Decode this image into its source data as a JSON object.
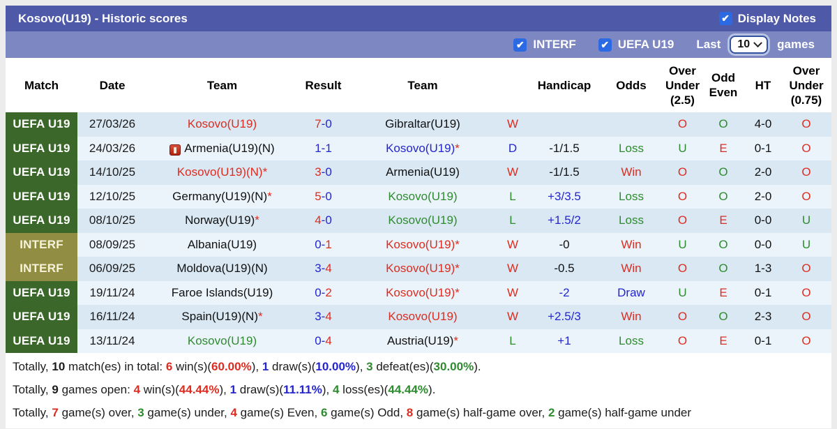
{
  "header": {
    "title": "Kosovo(U19) - Historic scores",
    "display_notes_label": "Display Notes",
    "display_notes_checked": true
  },
  "filter_bar": {
    "interf_label": "INTERF",
    "interf_checked": true,
    "uefa_label": "UEFA U19",
    "uefa_checked": true,
    "last_label": "Last",
    "last_games_value": "10",
    "games_label": "games"
  },
  "colors": {
    "accent_bar_dark": "#4e59a7",
    "accent_bar_light": "#7d87c1",
    "badge_uefa_green": "#3b682a",
    "badge_interf_olive": "#918d42",
    "win_red": "#dd2c20",
    "draw_blue": "#2425cf",
    "loss_green": "#2e8b2e"
  },
  "table": {
    "columns": [
      [
        "Match"
      ],
      [
        "Date"
      ],
      [
        "Team"
      ],
      [
        "Result"
      ],
      [
        "Team"
      ],
      [
        ""
      ],
      [
        "Handicap"
      ],
      [
        "Odds"
      ],
      [
        "Over",
        "Under",
        "(2.5)"
      ],
      [
        "Odd",
        "Even"
      ],
      [
        "HT"
      ],
      [
        "Over",
        "Under",
        "(0.75)"
      ]
    ]
  },
  "rows": [
    {
      "competition": "UEFA U19",
      "competition_type": "uefa",
      "date": "27/03/26",
      "team1": {
        "name": "Kosovo(U19)",
        "color": "red",
        "star": false,
        "icon": false
      },
      "result": {
        "s1": "7",
        "s2": "0",
        "c1": "red",
        "c2": "blue"
      },
      "team2": {
        "name": "Gibraltar(U19)",
        "color": "black",
        "star": false
      },
      "wdl": {
        "v": "W",
        "color": "red"
      },
      "handicap": {
        "v": "",
        "color": "black"
      },
      "odds": {
        "v": "",
        "color": "red"
      },
      "ou25": {
        "v": "O",
        "color": "red"
      },
      "oddeven": {
        "v": "O",
        "color": "green"
      },
      "ht": "4-0",
      "ou075": {
        "v": "O",
        "color": "red"
      }
    },
    {
      "competition": "UEFA U19",
      "competition_type": "uefa",
      "date": "24/03/26",
      "team1": {
        "name": "Armenia(U19)(N)",
        "color": "black",
        "star": false,
        "icon": true
      },
      "result": {
        "s1": "1",
        "s2": "1",
        "c1": "blue",
        "c2": "blue"
      },
      "team2": {
        "name": "Kosovo(U19)",
        "color": "blue",
        "star": true
      },
      "wdl": {
        "v": "D",
        "color": "blue"
      },
      "handicap": {
        "v": "-1/1.5",
        "color": "black"
      },
      "odds": {
        "v": "Loss",
        "color": "green"
      },
      "ou25": {
        "v": "U",
        "color": "green"
      },
      "oddeven": {
        "v": "E",
        "color": "red"
      },
      "ht": "0-1",
      "ou075": {
        "v": "O",
        "color": "red"
      }
    },
    {
      "competition": "UEFA U19",
      "competition_type": "uefa",
      "date": "14/10/25",
      "team1": {
        "name": "Kosovo(U19)(N)",
        "color": "red",
        "star": true,
        "icon": false
      },
      "result": {
        "s1": "3",
        "s2": "0",
        "c1": "red",
        "c2": "blue"
      },
      "team2": {
        "name": "Armenia(U19)",
        "color": "black",
        "star": false
      },
      "wdl": {
        "v": "W",
        "color": "red"
      },
      "handicap": {
        "v": "-1/1.5",
        "color": "black"
      },
      "odds": {
        "v": "Win",
        "color": "red"
      },
      "ou25": {
        "v": "O",
        "color": "red"
      },
      "oddeven": {
        "v": "O",
        "color": "green"
      },
      "ht": "2-0",
      "ou075": {
        "v": "O",
        "color": "red"
      }
    },
    {
      "competition": "UEFA U19",
      "competition_type": "uefa",
      "date": "12/10/25",
      "team1": {
        "name": "Germany(U19)(N)",
        "color": "black",
        "star": true,
        "icon": false
      },
      "result": {
        "s1": "5",
        "s2": "0",
        "c1": "red",
        "c2": "blue"
      },
      "team2": {
        "name": "Kosovo(U19)",
        "color": "green",
        "star": false
      },
      "wdl": {
        "v": "L",
        "color": "green"
      },
      "handicap": {
        "v": "+3/3.5",
        "color": "blue"
      },
      "odds": {
        "v": "Loss",
        "color": "green"
      },
      "ou25": {
        "v": "O",
        "color": "red"
      },
      "oddeven": {
        "v": "O",
        "color": "green"
      },
      "ht": "2-0",
      "ou075": {
        "v": "O",
        "color": "red"
      }
    },
    {
      "competition": "UEFA U19",
      "competition_type": "uefa",
      "date": "08/10/25",
      "team1": {
        "name": "Norway(U19)",
        "color": "black",
        "star": true,
        "icon": false
      },
      "result": {
        "s1": "4",
        "s2": "0",
        "c1": "red",
        "c2": "blue"
      },
      "team2": {
        "name": "Kosovo(U19)",
        "color": "green",
        "star": false
      },
      "wdl": {
        "v": "L",
        "color": "green"
      },
      "handicap": {
        "v": "+1.5/2",
        "color": "blue"
      },
      "odds": {
        "v": "Loss",
        "color": "green"
      },
      "ou25": {
        "v": "O",
        "color": "red"
      },
      "oddeven": {
        "v": "E",
        "color": "red"
      },
      "ht": "0-0",
      "ou075": {
        "v": "U",
        "color": "green"
      }
    },
    {
      "competition": "INTERF",
      "competition_type": "interf",
      "date": "08/09/25",
      "team1": {
        "name": "Albania(U19)",
        "color": "black",
        "star": false,
        "icon": false
      },
      "result": {
        "s1": "0",
        "s2": "1",
        "c1": "blue",
        "c2": "red"
      },
      "team2": {
        "name": "Kosovo(U19)",
        "color": "red",
        "star": true
      },
      "wdl": {
        "v": "W",
        "color": "red"
      },
      "handicap": {
        "v": "-0",
        "color": "black"
      },
      "odds": {
        "v": "Win",
        "color": "red"
      },
      "ou25": {
        "v": "U",
        "color": "green"
      },
      "oddeven": {
        "v": "O",
        "color": "green"
      },
      "ht": "0-0",
      "ou075": {
        "v": "U",
        "color": "green"
      }
    },
    {
      "competition": "INTERF",
      "competition_type": "interf",
      "date": "06/09/25",
      "team1": {
        "name": "Moldova(U19)(N)",
        "color": "black",
        "star": false,
        "icon": false
      },
      "result": {
        "s1": "3",
        "s2": "4",
        "c1": "blue",
        "c2": "red"
      },
      "team2": {
        "name": "Kosovo(U19)",
        "color": "red",
        "star": true
      },
      "wdl": {
        "v": "W",
        "color": "red"
      },
      "handicap": {
        "v": "-0.5",
        "color": "black"
      },
      "odds": {
        "v": "Win",
        "color": "red"
      },
      "ou25": {
        "v": "O",
        "color": "red"
      },
      "oddeven": {
        "v": "O",
        "color": "green"
      },
      "ht": "1-3",
      "ou075": {
        "v": "O",
        "color": "red"
      }
    },
    {
      "competition": "UEFA U19",
      "competition_type": "uefa",
      "date": "19/11/24",
      "team1": {
        "name": "Faroe Islands(U19)",
        "color": "black",
        "star": false,
        "icon": false
      },
      "result": {
        "s1": "0",
        "s2": "2",
        "c1": "blue",
        "c2": "red"
      },
      "team2": {
        "name": "Kosovo(U19)",
        "color": "red",
        "star": true
      },
      "wdl": {
        "v": "W",
        "color": "red"
      },
      "handicap": {
        "v": "-2",
        "color": "blue"
      },
      "odds": {
        "v": "Draw",
        "color": "blue"
      },
      "ou25": {
        "v": "U",
        "color": "green"
      },
      "oddeven": {
        "v": "E",
        "color": "red"
      },
      "ht": "0-1",
      "ou075": {
        "v": "O",
        "color": "red"
      }
    },
    {
      "competition": "UEFA U19",
      "competition_type": "uefa",
      "date": "16/11/24",
      "team1": {
        "name": "Spain(U19)(N)",
        "color": "black",
        "star": true,
        "icon": false
      },
      "result": {
        "s1": "3",
        "s2": "4",
        "c1": "blue",
        "c2": "red"
      },
      "team2": {
        "name": "Kosovo(U19)",
        "color": "red",
        "star": false
      },
      "wdl": {
        "v": "W",
        "color": "red"
      },
      "handicap": {
        "v": "+2.5/3",
        "color": "blue"
      },
      "odds": {
        "v": "Win",
        "color": "red"
      },
      "ou25": {
        "v": "O",
        "color": "red"
      },
      "oddeven": {
        "v": "O",
        "color": "green"
      },
      "ht": "2-3",
      "ou075": {
        "v": "O",
        "color": "red"
      }
    },
    {
      "competition": "UEFA U19",
      "competition_type": "uefa",
      "date": "13/11/24",
      "team1": {
        "name": "Kosovo(U19)",
        "color": "green",
        "star": false,
        "icon": false
      },
      "result": {
        "s1": "0",
        "s2": "4",
        "c1": "blue",
        "c2": "red"
      },
      "team2": {
        "name": "Austria(U19)",
        "color": "black",
        "star": true
      },
      "wdl": {
        "v": "L",
        "color": "green"
      },
      "handicap": {
        "v": "+1",
        "color": "blue"
      },
      "odds": {
        "v": "Loss",
        "color": "green"
      },
      "ou25": {
        "v": "O",
        "color": "red"
      },
      "oddeven": {
        "v": "E",
        "color": "red"
      },
      "ht": "0-1",
      "ou075": {
        "v": "O",
        "color": "red"
      }
    }
  ],
  "summary": [
    [
      {
        "t": "Totally, "
      },
      {
        "t": "10",
        "b": 1
      },
      {
        "t": " match(es) in total: "
      },
      {
        "t": "6",
        "b": 1,
        "c": "red"
      },
      {
        "t": " win(s)("
      },
      {
        "t": "60.00%",
        "b": 1,
        "c": "red"
      },
      {
        "t": "), "
      },
      {
        "t": "1",
        "b": 1,
        "c": "blue"
      },
      {
        "t": " draw(s)("
      },
      {
        "t": "10.00%",
        "b": 1,
        "c": "blue"
      },
      {
        "t": "), "
      },
      {
        "t": "3",
        "b": 1,
        "c": "green"
      },
      {
        "t": " defeat(es)("
      },
      {
        "t": "30.00%",
        "b": 1,
        "c": "green"
      },
      {
        "t": ")."
      }
    ],
    [
      {
        "t": "Totally, "
      },
      {
        "t": "9",
        "b": 1
      },
      {
        "t": " games open: "
      },
      {
        "t": "4",
        "b": 1,
        "c": "red"
      },
      {
        "t": " win(s)("
      },
      {
        "t": "44.44%",
        "b": 1,
        "c": "red"
      },
      {
        "t": "), "
      },
      {
        "t": "1",
        "b": 1,
        "c": "blue"
      },
      {
        "t": " draw(s)("
      },
      {
        "t": "11.11%",
        "b": 1,
        "c": "blue"
      },
      {
        "t": "), "
      },
      {
        "t": "4",
        "b": 1,
        "c": "green"
      },
      {
        "t": " loss(es)("
      },
      {
        "t": "44.44%",
        "b": 1,
        "c": "green"
      },
      {
        "t": ")."
      }
    ],
    [
      {
        "t": "Totally, "
      },
      {
        "t": "7",
        "b": 1,
        "c": "red"
      },
      {
        "t": " game(s) over, "
      },
      {
        "t": "3",
        "b": 1,
        "c": "green"
      },
      {
        "t": " game(s) under, "
      },
      {
        "t": "4",
        "b": 1,
        "c": "red"
      },
      {
        "t": " game(s) Even, "
      },
      {
        "t": "6",
        "b": 1,
        "c": "green"
      },
      {
        "t": " game(s) Odd, "
      },
      {
        "t": "8",
        "b": 1,
        "c": "red"
      },
      {
        "t": " game(s) half-game over, "
      },
      {
        "t": "2",
        "b": 1,
        "c": "green"
      },
      {
        "t": " game(s) half-game under"
      }
    ]
  ]
}
